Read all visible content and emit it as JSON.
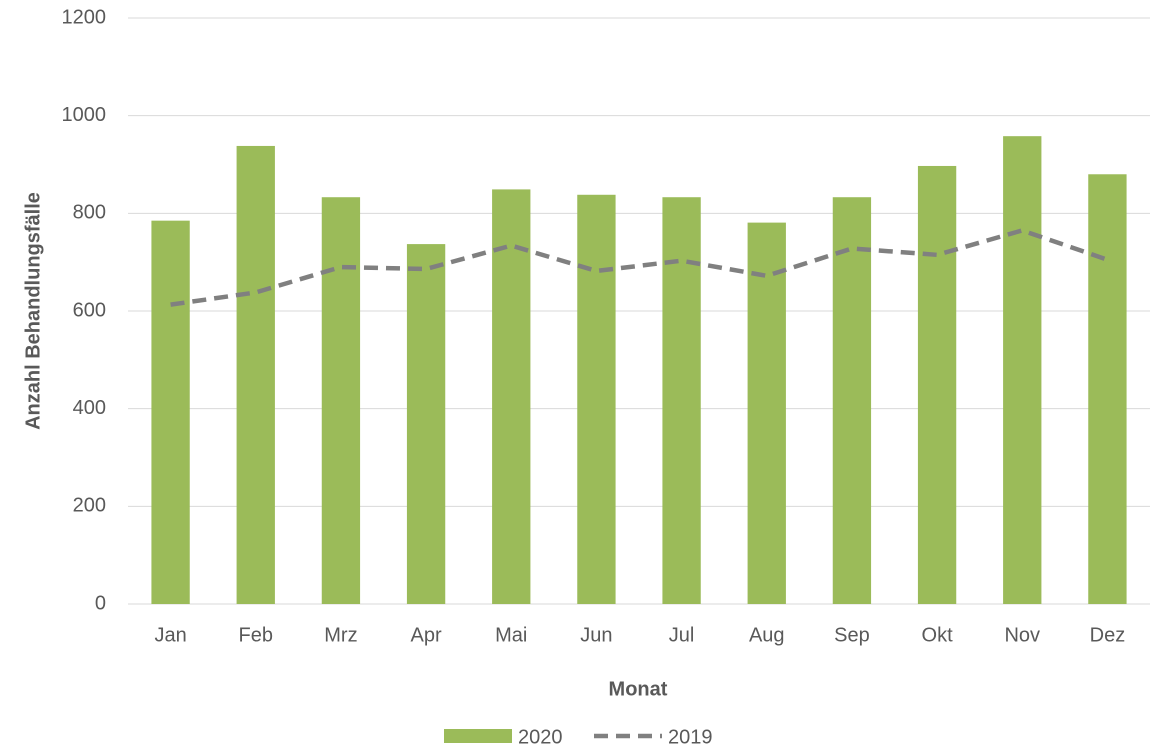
{
  "chart_data": {
    "type": "bar",
    "x_label": "Monat",
    "y_label": "Anzahl Behandlungsfälle",
    "categories": [
      "Jan",
      "Feb",
      "Mrz",
      "Apr",
      "Mai",
      "Jun",
      "Jul",
      "Aug",
      "Sep",
      "Okt",
      "Nov",
      "Dez"
    ],
    "series": [
      {
        "name": "2020",
        "type": "bar",
        "color": "#9bbb59",
        "values": [
          785,
          938,
          833,
          737,
          849,
          838,
          833,
          781,
          833,
          897,
          958,
          880
        ]
      },
      {
        "name": "2019",
        "type": "line",
        "dashed": true,
        "color": "#808080",
        "values": [
          613,
          638,
          690,
          686,
          734,
          682,
          703,
          672,
          728,
          715,
          765,
          705
        ]
      }
    ],
    "ylim": [
      0,
      1200
    ],
    "yticks": [
      0,
      200,
      400,
      600,
      800,
      1000,
      1200
    ],
    "grid": true,
    "legend": "bottom"
  }
}
